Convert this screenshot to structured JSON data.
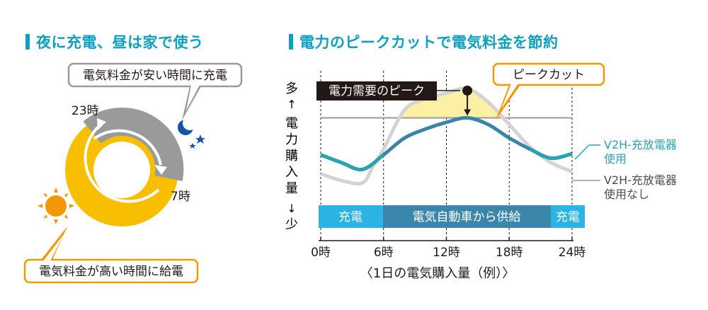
{
  "left_panel": {
    "heading": "夜に充電、昼は家で使う",
    "callout_top": "電気料金が安い時間に充電",
    "callout_bottom": "電気料金が高い時間に給電",
    "label_23": "23時",
    "label_7": "7時"
  },
  "right_panel": {
    "heading": "電力のピークカットで電気料金を節約",
    "y_axis": {
      "top": "多",
      "up_arrow": "↑",
      "label": "電力購入量",
      "down_arrow": "↓",
      "bottom": "少"
    },
    "peak_demand_label": "電力需要のピーク",
    "peak_cut_label": "ピークカット",
    "legend_with_line1": "V2H-充放電器",
    "legend_with_line2": "使用",
    "legend_without_line1": "V2H-充放電器",
    "legend_without_line2": "使用なし",
    "phase_bar": {
      "charge_left": "充電",
      "supply": "電気自動車から供給",
      "charge_right": "充電"
    },
    "x_caption": "〈1日の電気購入量（例）〉"
  },
  "colors": {
    "accent_blue": "#0f9fbf",
    "charge_blue": "#2bb4e3",
    "supply_blue": "#3a87ab",
    "orange": "#f39800",
    "yellow": "#f7bf00",
    "light_yellow": "#fbf0a3",
    "gray": "#9a9a9a",
    "light_gray": "#d4d4d4",
    "teal": "#27a4b0",
    "steel_blue": "#3b84a8",
    "black": "#231815"
  },
  "chart_data": {
    "type": "line",
    "x_unit": "hour",
    "x_ticks": [
      "0時",
      "6時",
      "12時",
      "18時",
      "24時"
    ],
    "series": [
      {
        "name": "V2H-充放電器使用",
        "x": [
          0,
          2,
          4,
          6,
          8,
          10,
          12,
          14,
          16,
          18,
          20,
          22,
          24
        ],
        "y": [
          0.45,
          0.38,
          0.32,
          0.45,
          0.6,
          0.68,
          0.74,
          0.78,
          0.72,
          0.6,
          0.5,
          0.42,
          0.46
        ]
      },
      {
        "name": "V2H-充放電器使用なし",
        "x": [
          0,
          2,
          4,
          5,
          6,
          8,
          10,
          12,
          14,
          16,
          18,
          20,
          22,
          24
        ],
        "y": [
          0.28,
          0.22,
          0.2,
          0.35,
          0.5,
          0.85,
          0.95,
          1.0,
          1.04,
          0.92,
          0.72,
          0.52,
          0.38,
          0.3
        ]
      }
    ],
    "peak_threshold": 0.78,
    "peak_x": 14,
    "ylim": [
      0,
      1.2
    ],
    "xlim": [
      0,
      24
    ]
  }
}
